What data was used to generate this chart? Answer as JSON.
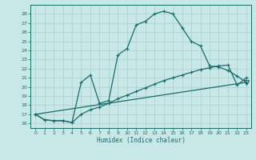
{
  "title": "",
  "xlabel": "Humidex (Indice chaleur)",
  "bg_color": "#c8e8e8",
  "grid_color": "#aacccc",
  "line_color": "#1a6b6b",
  "xlim": [
    -0.5,
    23.5
  ],
  "ylim": [
    15.5,
    29.0
  ],
  "yticks": [
    16,
    17,
    18,
    19,
    20,
    21,
    22,
    23,
    24,
    25,
    26,
    27,
    28
  ],
  "xticks": [
    0,
    1,
    2,
    3,
    4,
    5,
    6,
    7,
    8,
    9,
    10,
    11,
    12,
    13,
    14,
    15,
    16,
    17,
    18,
    19,
    20,
    21,
    22,
    23
  ],
  "curve1_x": [
    0,
    1,
    2,
    3,
    4,
    5,
    6,
    7,
    8,
    9,
    10,
    11,
    12,
    13,
    14,
    15,
    16,
    17,
    18,
    19,
    20,
    21,
    22,
    23
  ],
  "curve1_y": [
    17.0,
    16.4,
    16.3,
    16.3,
    16.1,
    20.5,
    21.3,
    18.2,
    18.5,
    23.5,
    24.2,
    26.8,
    27.2,
    28.0,
    28.3,
    28.0,
    26.5,
    25.0,
    24.5,
    22.3,
    22.2,
    21.8,
    21.2,
    20.5
  ],
  "curve2_x": [
    0,
    1,
    2,
    3,
    4,
    5,
    6,
    7,
    8,
    9,
    10,
    11,
    12,
    13,
    14,
    15,
    16,
    17,
    18,
    19,
    20,
    21,
    22,
    23
  ],
  "curve2_y": [
    17.0,
    16.4,
    16.3,
    16.3,
    16.1,
    17.0,
    17.5,
    17.8,
    18.2,
    18.7,
    19.1,
    19.5,
    19.9,
    20.3,
    20.7,
    21.0,
    21.3,
    21.6,
    21.9,
    22.1,
    22.3,
    22.4,
    20.2,
    21.0
  ],
  "curve3_x": [
    0,
    23
  ],
  "curve3_y": [
    17.0,
    20.5
  ],
  "triangle_x": 23,
  "triangle_y": 20.5
}
